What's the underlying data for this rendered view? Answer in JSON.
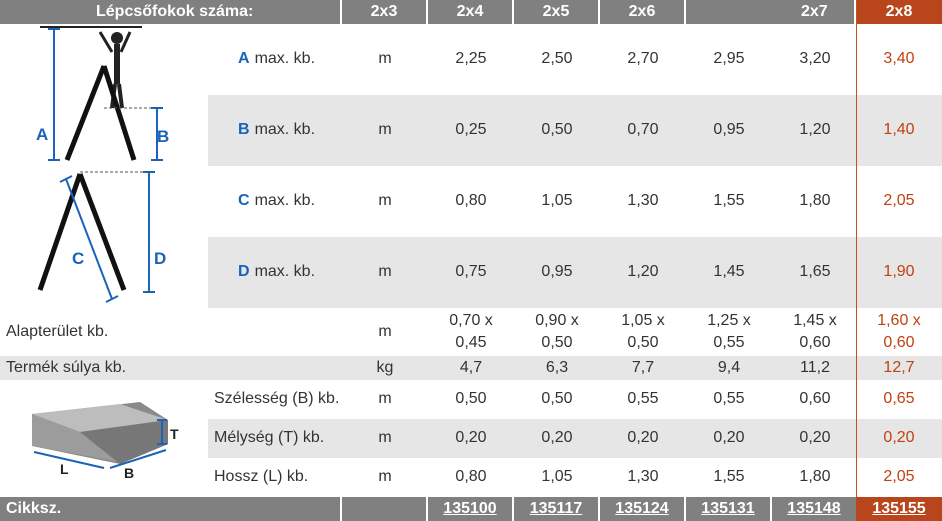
{
  "header": {
    "title": "Lépcsőfokok száma:",
    "columns": [
      "2x3",
      "2x4",
      "2x5",
      "2x6",
      "2x7",
      "2x8"
    ]
  },
  "dim_rows": [
    {
      "letter": "A",
      "label": "max. kb.",
      "unit": "m",
      "values": [
        "2,25",
        "2,50",
        "2,70",
        "2,95",
        "3,20",
        "3,40"
      ]
    },
    {
      "letter": "B",
      "label": "max. kb.",
      "unit": "m",
      "values": [
        "0,25",
        "0,50",
        "0,70",
        "0,95",
        "1,20",
        "1,40"
      ]
    },
    {
      "letter": "C",
      "label": "max. kb.",
      "unit": "m",
      "values": [
        "0,80",
        "1,05",
        "1,30",
        "1,55",
        "1,80",
        "2,05"
      ]
    },
    {
      "letter": "D",
      "label": "max. kb.",
      "unit": "m",
      "values": [
        "0,75",
        "0,95",
        "1,20",
        "1,45",
        "1,65",
        "1,90"
      ]
    }
  ],
  "footprint": {
    "label": "Alapterület kb.",
    "unit": "m",
    "values": [
      [
        "0,70 x",
        "0,45"
      ],
      [
        "0,90 x",
        "0,50"
      ],
      [
        "1,05 x",
        "0,50"
      ],
      [
        "1,25 x",
        "0,55"
      ],
      [
        "1,45 x",
        "0,60"
      ],
      [
        "1,60 x",
        "0,60"
      ]
    ]
  },
  "weight": {
    "label": "Termék súlya kb.",
    "unit": "kg",
    "values": [
      "4,7",
      "6,3",
      "7,7",
      "9,4",
      "11,2",
      "12,7"
    ]
  },
  "package_rows": [
    {
      "label": "Szélesség (B) kb.",
      "unit": "m",
      "values": [
        "0,50",
        "0,50",
        "0,55",
        "0,55",
        "0,60",
        "0,65"
      ]
    },
    {
      "label": "Mélység (T) kb.",
      "unit": "m",
      "values": [
        "0,20",
        "0,20",
        "0,20",
        "0,20",
        "0,20",
        "0,20"
      ]
    },
    {
      "label": "Hossz (L) kb.",
      "unit": "m",
      "values": [
        "0,80",
        "1,05",
        "1,30",
        "1,55",
        "1,80",
        "2,05"
      ]
    }
  ],
  "article": {
    "label": "Cikksz.",
    "codes": [
      "135100",
      "135117",
      "135124",
      "135131",
      "135148",
      "135155"
    ]
  },
  "diagram_letters": {
    "a": "A",
    "b": "B",
    "c": "C",
    "d": "D",
    "t": "T",
    "l": "L",
    "bb": "B"
  },
  "colors": {
    "header_bg": "#808080",
    "accent": "#b8451b",
    "accent_text": "#c0410f",
    "stripe": "#e6e6e6",
    "letter": "#1a63b8"
  }
}
